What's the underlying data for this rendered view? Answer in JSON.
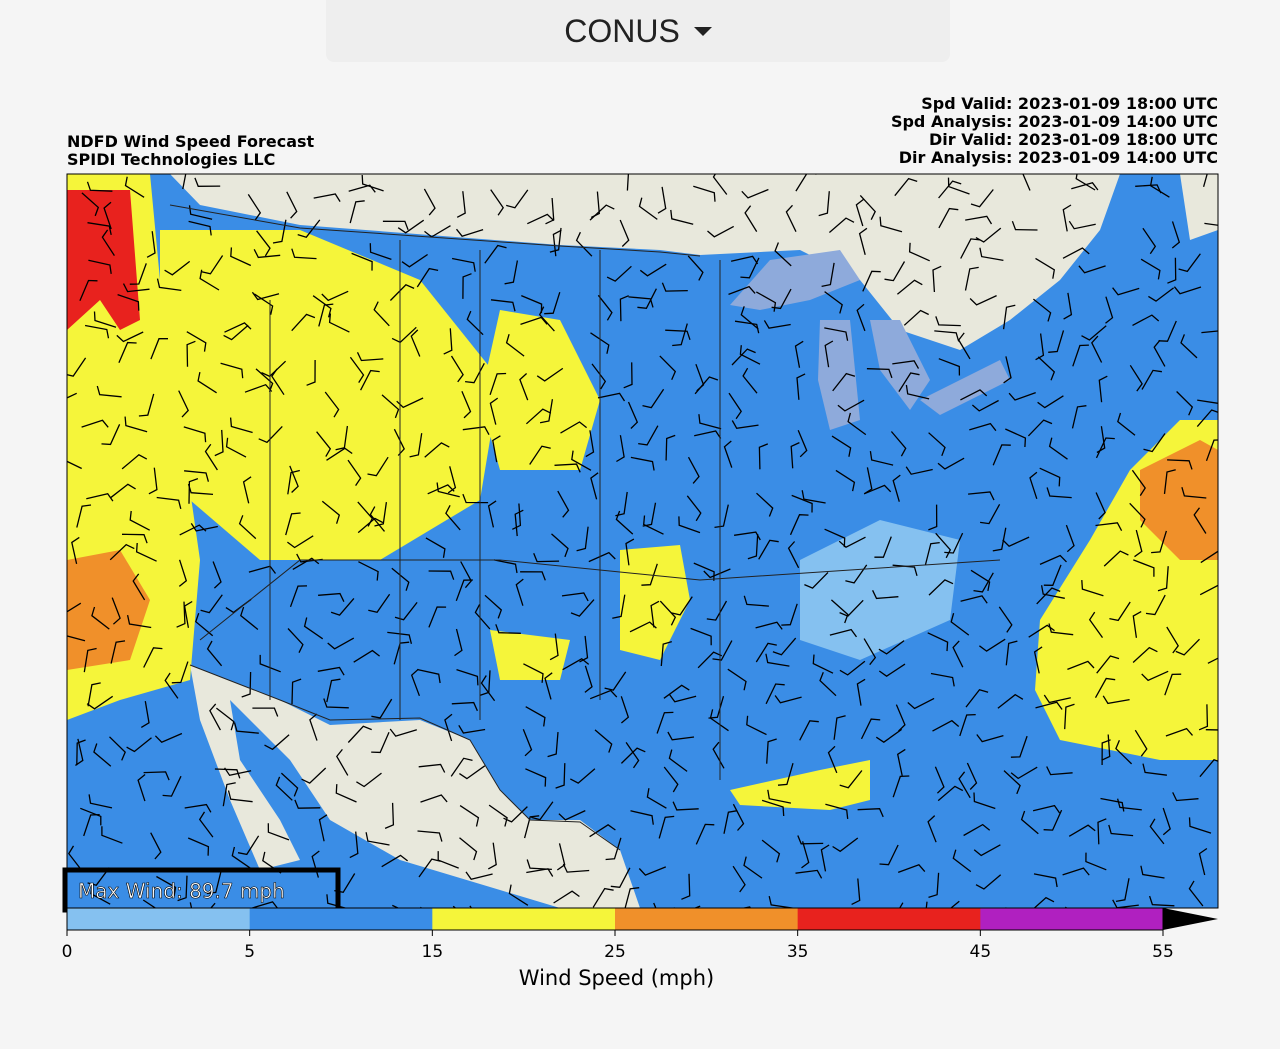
{
  "header": {
    "region": "CONUS"
  },
  "map": {
    "title_lines": [
      "NDFD Wind Speed Forecast",
      "SPIDI Technologies LLC"
    ],
    "valid_lines": [
      "Spd Valid: 2023-01-09 18:00 UTC",
      "Spd Analysis: 2023-01-09 14:00 UTC",
      "Dir Valid: 2023-01-09 18:00 UTC",
      "Dir Analysis: 2023-01-09 14:00 UTC"
    ],
    "max_wind": "Max Wind: 89.7 mph"
  },
  "colorbar": {
    "label": "Wind Speed (mph)",
    "boundaries": [
      0,
      5,
      15,
      25,
      35,
      45,
      55
    ],
    "colors": [
      "#85c1f0",
      "#3a8de6",
      "#f5f53a",
      "#f0902a",
      "#e8221e",
      "#b020c0"
    ],
    "extend_color": "#000000"
  }
}
